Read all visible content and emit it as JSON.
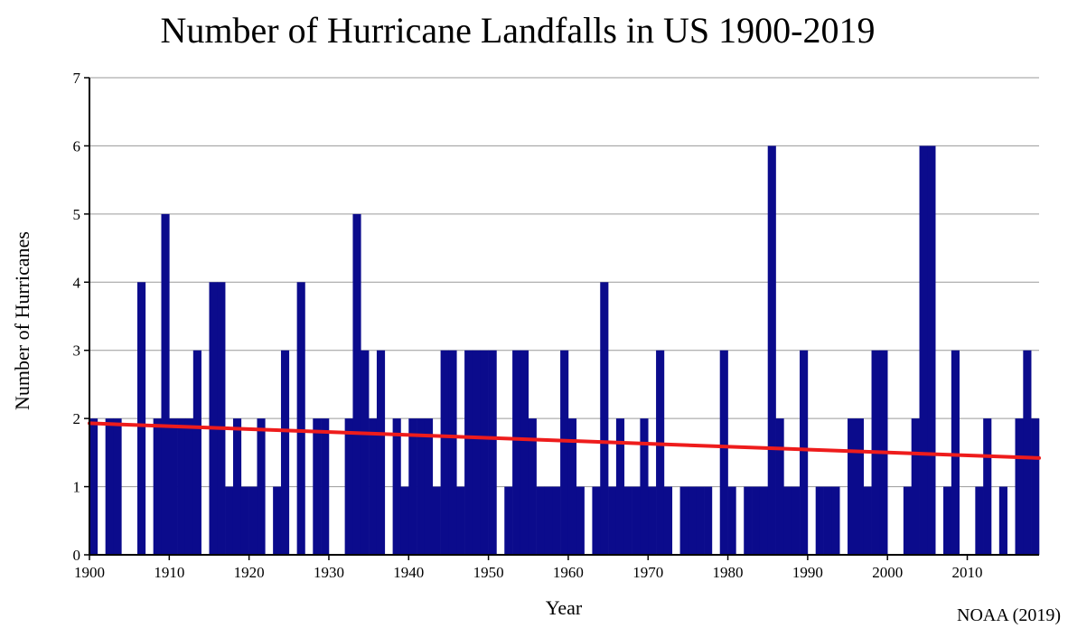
{
  "chart_data": {
    "type": "bar",
    "title": "Number of Hurricane Landfalls in US 1900-2019",
    "xlabel": "Year",
    "ylabel": "Number of Hurricanes",
    "source": "NOAA (2019)",
    "xlim": [
      1900,
      2019
    ],
    "ylim": [
      0,
      7
    ],
    "yticks": [
      "0",
      "1",
      "2",
      "3",
      "4",
      "5",
      "6",
      "7"
    ],
    "xticks": [
      "1900",
      "1910",
      "1920",
      "1930",
      "1940",
      "1950",
      "1960",
      "1970",
      "1980",
      "1990",
      "2000",
      "2010"
    ],
    "grid": true,
    "bar_color": "#0b0b8c",
    "trend_color": "#ee1c1c",
    "years": [
      1900,
      1901,
      1902,
      1903,
      1904,
      1905,
      1906,
      1907,
      1908,
      1909,
      1910,
      1911,
      1912,
      1913,
      1914,
      1915,
      1916,
      1917,
      1918,
      1919,
      1920,
      1921,
      1922,
      1923,
      1924,
      1925,
      1926,
      1927,
      1928,
      1929,
      1930,
      1931,
      1932,
      1933,
      1934,
      1935,
      1936,
      1937,
      1938,
      1939,
      1940,
      1941,
      1942,
      1943,
      1944,
      1945,
      1946,
      1947,
      1948,
      1949,
      1950,
      1951,
      1952,
      1953,
      1954,
      1955,
      1956,
      1957,
      1958,
      1959,
      1960,
      1961,
      1962,
      1963,
      1964,
      1965,
      1966,
      1967,
      1968,
      1969,
      1970,
      1971,
      1972,
      1973,
      1974,
      1975,
      1976,
      1977,
      1978,
      1979,
      1980,
      1981,
      1982,
      1983,
      1984,
      1985,
      1986,
      1987,
      1988,
      1989,
      1990,
      1991,
      1992,
      1993,
      1994,
      1995,
      1996,
      1997,
      1998,
      1999,
      2000,
      2001,
      2002,
      2003,
      2004,
      2005,
      2006,
      2007,
      2008,
      2009,
      2010,
      2011,
      2012,
      2013,
      2014,
      2015,
      2016,
      2017,
      2018
    ],
    "values": [
      2,
      0,
      2,
      2,
      0,
      0,
      4,
      0,
      2,
      5,
      2,
      2,
      2,
      3,
      0,
      4,
      4,
      1,
      2,
      1,
      1,
      2,
      0,
      1,
      3,
      0,
      4,
      0,
      2,
      2,
      0,
      0,
      2,
      5,
      3,
      2,
      3,
      0,
      2,
      1,
      2,
      2,
      2,
      1,
      3,
      3,
      1,
      3,
      3,
      3,
      3,
      0,
      1,
      3,
      3,
      2,
      1,
      1,
      1,
      3,
      2,
      1,
      0,
      1,
      4,
      1,
      2,
      1,
      1,
      2,
      1,
      3,
      1,
      0,
      1,
      1,
      1,
      1,
      0,
      3,
      1,
      0,
      1,
      1,
      1,
      6,
      2,
      1,
      1,
      3,
      0,
      1,
      1,
      1,
      0,
      2,
      2,
      1,
      3,
      3,
      0,
      0,
      1,
      2,
      6,
      6,
      0,
      1,
      3,
      0,
      0,
      1,
      2,
      0,
      1,
      0,
      2,
      3,
      2
    ],
    "trend": {
      "start": [
        1900,
        1.93
      ],
      "end": [
        2019,
        1.42
      ]
    }
  }
}
